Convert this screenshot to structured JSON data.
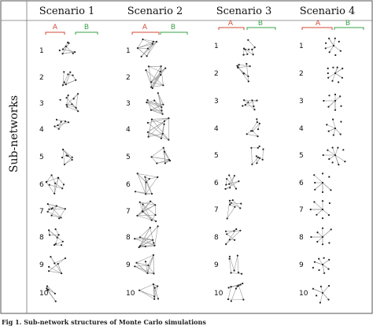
{
  "figure": {
    "y_axis_label": "Sub-networks",
    "scenarios": [
      "Scenario 1",
      "Scenario 2",
      "Scenario 3",
      "Scenario 4"
    ],
    "group_labels": {
      "a": "A",
      "b": "B"
    },
    "row_labels": [
      "1",
      "2",
      "3",
      "4",
      "5",
      "6",
      "7",
      "8",
      "9",
      "10"
    ],
    "colors": {
      "group_a": "#d04a3a",
      "group_b": "#3aa24a",
      "edge": "#9a9a9a",
      "node": "#222222",
      "border": "#555555"
    }
  },
  "caption": "Fig 1. Sub-network structures of Monte Carlo simulations"
}
